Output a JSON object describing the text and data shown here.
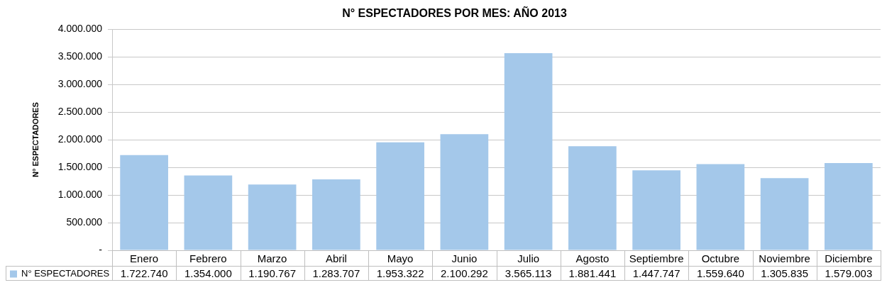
{
  "chart_data": {
    "type": "bar",
    "title": "N° ESPECTADORES POR MES: AÑO 2013",
    "ylabel": "N° ESPECTADORES",
    "categories": [
      "Enero",
      "Febrero",
      "Marzo",
      "Abril",
      "Mayo",
      "Junio",
      "Julio",
      "Agosto",
      "Septiembre",
      "Octubre",
      "Noviembre",
      "Diciembre"
    ],
    "series": [
      {
        "name": "N° ESPECTADORES",
        "color": "#a4c8ea",
        "values": [
          1722740,
          1354000,
          1190767,
          1283707,
          1953322,
          2100292,
          3565113,
          1881441,
          1447747,
          1559640,
          1305835,
          1579003
        ],
        "value_labels": [
          "1.722.740",
          "1.354.000",
          "1.190.767",
          "1.283.707",
          "1.953.322",
          "2.100.292",
          "3.565.113",
          "1.881.441",
          "1.447.747",
          "1.559.640",
          "1.305.835",
          "1.579.003"
        ]
      }
    ],
    "ylim": [
      0,
      4000000
    ],
    "yticks": [
      {
        "value": 0,
        "label": "-"
      },
      {
        "value": 500000,
        "label": "500.000"
      },
      {
        "value": 1000000,
        "label": "1.000.000"
      },
      {
        "value": 1500000,
        "label": "1.500.000"
      },
      {
        "value": 2000000,
        "label": "2.000.000"
      },
      {
        "value": 2500000,
        "label": "2.500.000"
      },
      {
        "value": 3000000,
        "label": "3.000.000"
      },
      {
        "value": 3500000,
        "label": "3.500.000"
      },
      {
        "value": 4000000,
        "label": "4.000.000"
      }
    ],
    "grid": "y",
    "legend": "bottom"
  }
}
